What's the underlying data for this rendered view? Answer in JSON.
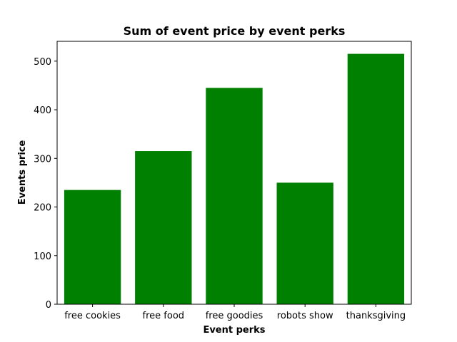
{
  "chart_data": {
    "type": "bar",
    "title": "Sum of event price by event perks",
    "xlabel": "Event perks",
    "ylabel": "Events price",
    "categories": [
      "free cookies",
      "free food",
      "free goodies",
      "robots show",
      "thanksgiving"
    ],
    "values": [
      235,
      315,
      445,
      250,
      515
    ],
    "ylim": [
      0,
      540.75
    ],
    "yticks": [
      0,
      100,
      200,
      300,
      400,
      500
    ],
    "grid": false,
    "bar_color": "#008000"
  }
}
